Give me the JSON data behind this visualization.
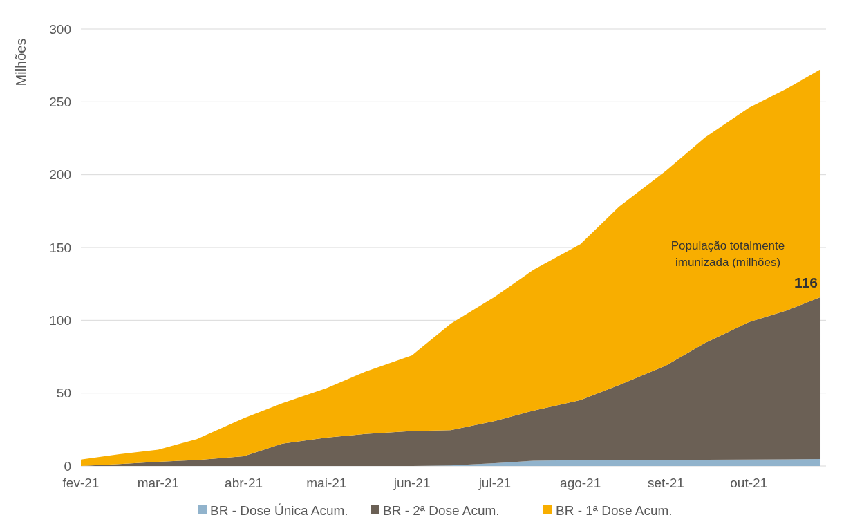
{
  "chart_data": {
    "type": "area",
    "stacked": true,
    "ylabel": "Milhões",
    "x": [
      "2021-02-01",
      "2021-02-15",
      "2021-03-01",
      "2021-03-15",
      "2021-04-01",
      "2021-04-15",
      "2021-05-01",
      "2021-05-15",
      "2021-06-01",
      "2021-06-15",
      "2021-07-01",
      "2021-07-15",
      "2021-08-01",
      "2021-08-15",
      "2021-09-01",
      "2021-09-15",
      "2021-10-01",
      "2021-10-15",
      "2021-10-27"
    ],
    "series": [
      {
        "name": "BR - Dose Única Acum.",
        "color": "#91b3cc",
        "values": [
          0,
          0,
          0,
          0,
          0,
          0,
          0,
          0,
          0,
          0.3,
          1.9,
          3.6,
          4,
          4.1,
          4.2,
          4.3,
          4.4,
          4.5,
          4.8
        ]
      },
      {
        "name": "BR - 2ª Dose Acum.",
        "color": "#6b6055",
        "values": [
          0,
          1.3,
          2.9,
          4,
          6.6,
          15.3,
          19.5,
          21.9,
          24,
          24.3,
          28.9,
          34.4,
          41.2,
          51.4,
          64.7,
          80,
          94.3,
          102.4,
          111.2
        ]
      },
      {
        "name": "BR - 1ª Dose Acum.",
        "color": "#f8ae00",
        "values": [
          4.4,
          6.8,
          8.3,
          14.4,
          26.2,
          27.8,
          33.9,
          42.8,
          52,
          73.1,
          85.4,
          96.7,
          107.1,
          122.5,
          133.8,
          141,
          147.2,
          152.4,
          156.3
        ]
      }
    ],
    "xlim": [
      "2021-02-01",
      "2021-10-29"
    ],
    "xticks": [
      {
        "value": "2021-02-01",
        "label": "fev-21"
      },
      {
        "value": "2021-03-01",
        "label": "mar-21"
      },
      {
        "value": "2021-04-01",
        "label": "abr-21"
      },
      {
        "value": "2021-05-01",
        "label": "mai-21"
      },
      {
        "value": "2021-06-01",
        "label": "jun-21"
      },
      {
        "value": "2021-07-01",
        "label": "jul-21"
      },
      {
        "value": "2021-08-01",
        "label": "ago-21"
      },
      {
        "value": "2021-09-01",
        "label": "set-21"
      },
      {
        "value": "2021-10-01",
        "label": "out-21"
      }
    ],
    "ylim": [
      0,
      300
    ],
    "yticks": [
      0,
      50,
      100,
      150,
      200,
      250,
      300
    ],
    "grid": "y",
    "legend": "bottom",
    "annotations": [
      "População totalmente\nimunizada (milhões)",
      {
        "text": "116",
        "x": "2021-10-27",
        "y": 116
      }
    ]
  }
}
